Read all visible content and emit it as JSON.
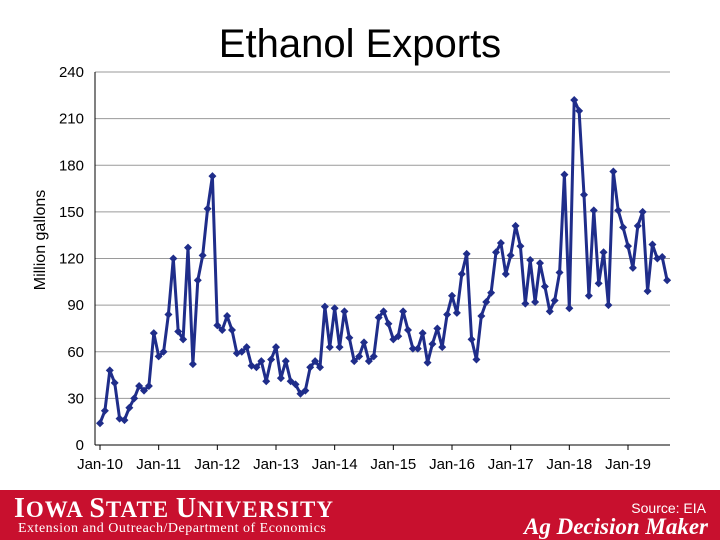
{
  "chart_data": {
    "type": "line",
    "title": "Ethanol Exports",
    "ylabel": "Million gallons",
    "xlabel": "",
    "ylim": [
      0,
      240
    ],
    "yticks": [
      0,
      30,
      60,
      90,
      120,
      150,
      180,
      210,
      240
    ],
    "xtick_labels": [
      "Jan-10",
      "Jan-11",
      "Jan-12",
      "Jan-13",
      "Jan-14",
      "Jan-15",
      "Jan-16",
      "Jan-17",
      "Jan-18",
      "Jan-19"
    ],
    "start": "Jan-10",
    "frequency": "monthly",
    "grid": true,
    "series": [
      {
        "color": "#1f2d8a",
        "marker": "diamond",
        "values": [
          14,
          22,
          48,
          40,
          17,
          16,
          24,
          30,
          38,
          35,
          38,
          72,
          57,
          60,
          84,
          120,
          73,
          68,
          127,
          52,
          106,
          122,
          152,
          173,
          77,
          74,
          83,
          74,
          59,
          60,
          63,
          51,
          50,
          54,
          41,
          55,
          63,
          43,
          54,
          41,
          39,
          33,
          35,
          50,
          54,
          50,
          89,
          63,
          88,
          63,
          86,
          69,
          54,
          57,
          66,
          54,
          57,
          82,
          86,
          78,
          68,
          70,
          86,
          74,
          62,
          62,
          72,
          53,
          65,
          75,
          63,
          84,
          96,
          85,
          110,
          123,
          68,
          55,
          83,
          92,
          98,
          124,
          130,
          110,
          122,
          141,
          128,
          91,
          119,
          92,
          117,
          102,
          86,
          93,
          111,
          174,
          88,
          222,
          215,
          161,
          96,
          151,
          104,
          124,
          90,
          176,
          151,
          140,
          128,
          114,
          141,
          150,
          99,
          129,
          120,
          121,
          106
        ]
      }
    ],
    "source": "Source: EIA"
  },
  "footer": {
    "university_first": "I",
    "university_rest": "OWA ",
    "university_first2": "S",
    "university_rest2": "TATE ",
    "university_first3": "U",
    "university_rest3": "NIVERSITY",
    "department": "Extension and Outreach/Department of Economics",
    "brand": "Ag Decision Maker"
  },
  "colors": {
    "footer_bg": "#c8102e",
    "series": "#1f2d8a"
  }
}
